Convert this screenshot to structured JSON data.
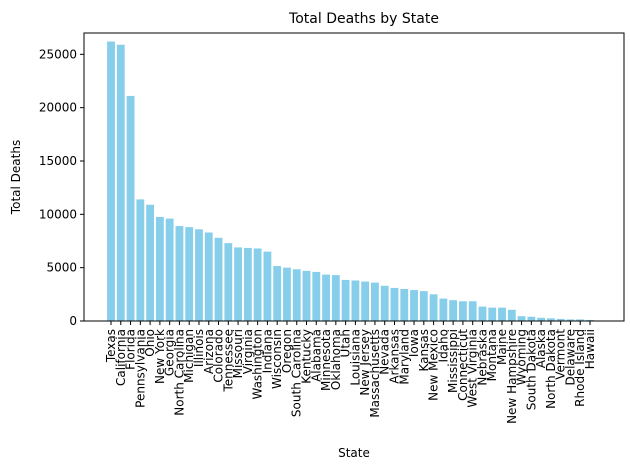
{
  "chart_data": {
    "type": "bar",
    "title": "Total Deaths by State",
    "xlabel": "State",
    "ylabel": "Total Deaths",
    "ylim": [
      0,
      27000
    ],
    "yticks": [
      0,
      5000,
      10000,
      15000,
      20000,
      25000
    ],
    "bar_color": "#87ceeb",
    "grid": false,
    "categories": [
      "Texas",
      "California",
      "Florida",
      "Pennsylvania",
      "Ohio",
      "New York",
      "Georgia",
      "North Carolina",
      "Michigan",
      "Illinois",
      "Arizona",
      "Colorado",
      "Tennessee",
      "Missouri",
      "Virginia",
      "Washington",
      "Indiana",
      "Wisconsin",
      "Oregon",
      "South Carolina",
      "Kentucky",
      "Alabama",
      "Minnesota",
      "Oklahoma",
      "Utah",
      "Louisiana",
      "New Jersey",
      "Massachusetts",
      "Nevada",
      "Arkansas",
      "Maryland",
      "Iowa",
      "Kansas",
      "New Mexico",
      "Idaho",
      "Mississippi",
      "Connecticut",
      "West Virginia",
      "Nebraska",
      "Montana",
      "Maine",
      "New Hampshire",
      "Wyoming",
      "South Dakota",
      "Alaska",
      "North Dakota",
      "Vermont",
      "Delaware",
      "Rhode Island",
      "Hawaii"
    ],
    "values": [
      26200,
      25900,
      21100,
      11400,
      10900,
      9750,
      9600,
      8900,
      8800,
      8600,
      8300,
      7800,
      7300,
      6900,
      6850,
      6800,
      6500,
      5150,
      5000,
      4850,
      4700,
      4600,
      4350,
      4300,
      3850,
      3800,
      3700,
      3600,
      3300,
      3100,
      3000,
      2900,
      2800,
      2500,
      2100,
      1950,
      1850,
      1850,
      1350,
      1250,
      1250,
      1050,
      450,
      400,
      300,
      250,
      200,
      150,
      150,
      100
    ]
  }
}
